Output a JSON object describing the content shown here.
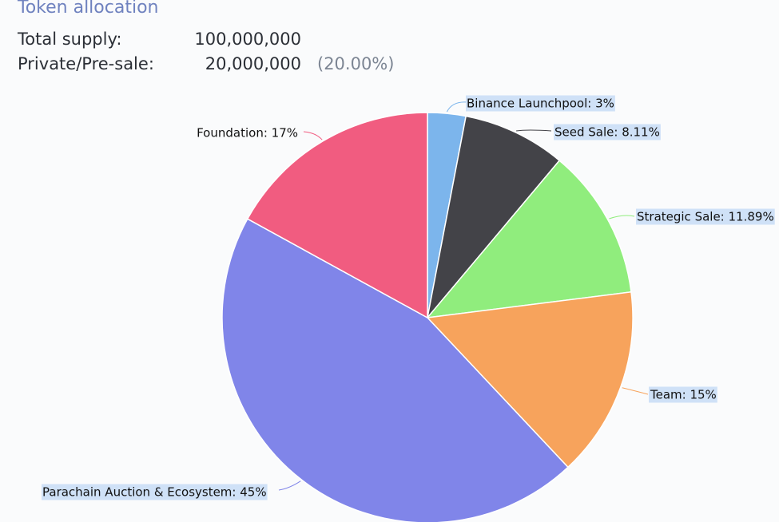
{
  "title": "Token allocation",
  "stats": {
    "total_supply_label": "Total supply:",
    "total_supply_value": "100,000,000",
    "presale_label": "Private/Pre-sale:",
    "presale_value": "20,000,000",
    "presale_pct": "(20.00%)"
  },
  "chart_data": {
    "type": "pie",
    "labels": [
      "Binance Launchpool",
      "Seed Sale",
      "Strategic Sale",
      "Team",
      "Parachain Auction & Ecosystem",
      "Foundation"
    ],
    "values": [
      3,
      8.11,
      11.89,
      15,
      45,
      17
    ],
    "data_labels": [
      "Binance Launchpool: 3%",
      "Seed Sale: 8.11%",
      "Strategic Sale: 11.89%",
      "Team: 15%",
      "Parachain Auction & Ecosystem: 45%",
      "Foundation: 17%"
    ],
    "colors": [
      "#7cb5ec",
      "#434348",
      "#90ed7d",
      "#f7a35c",
      "#8085e9",
      "#f15c80"
    ]
  }
}
